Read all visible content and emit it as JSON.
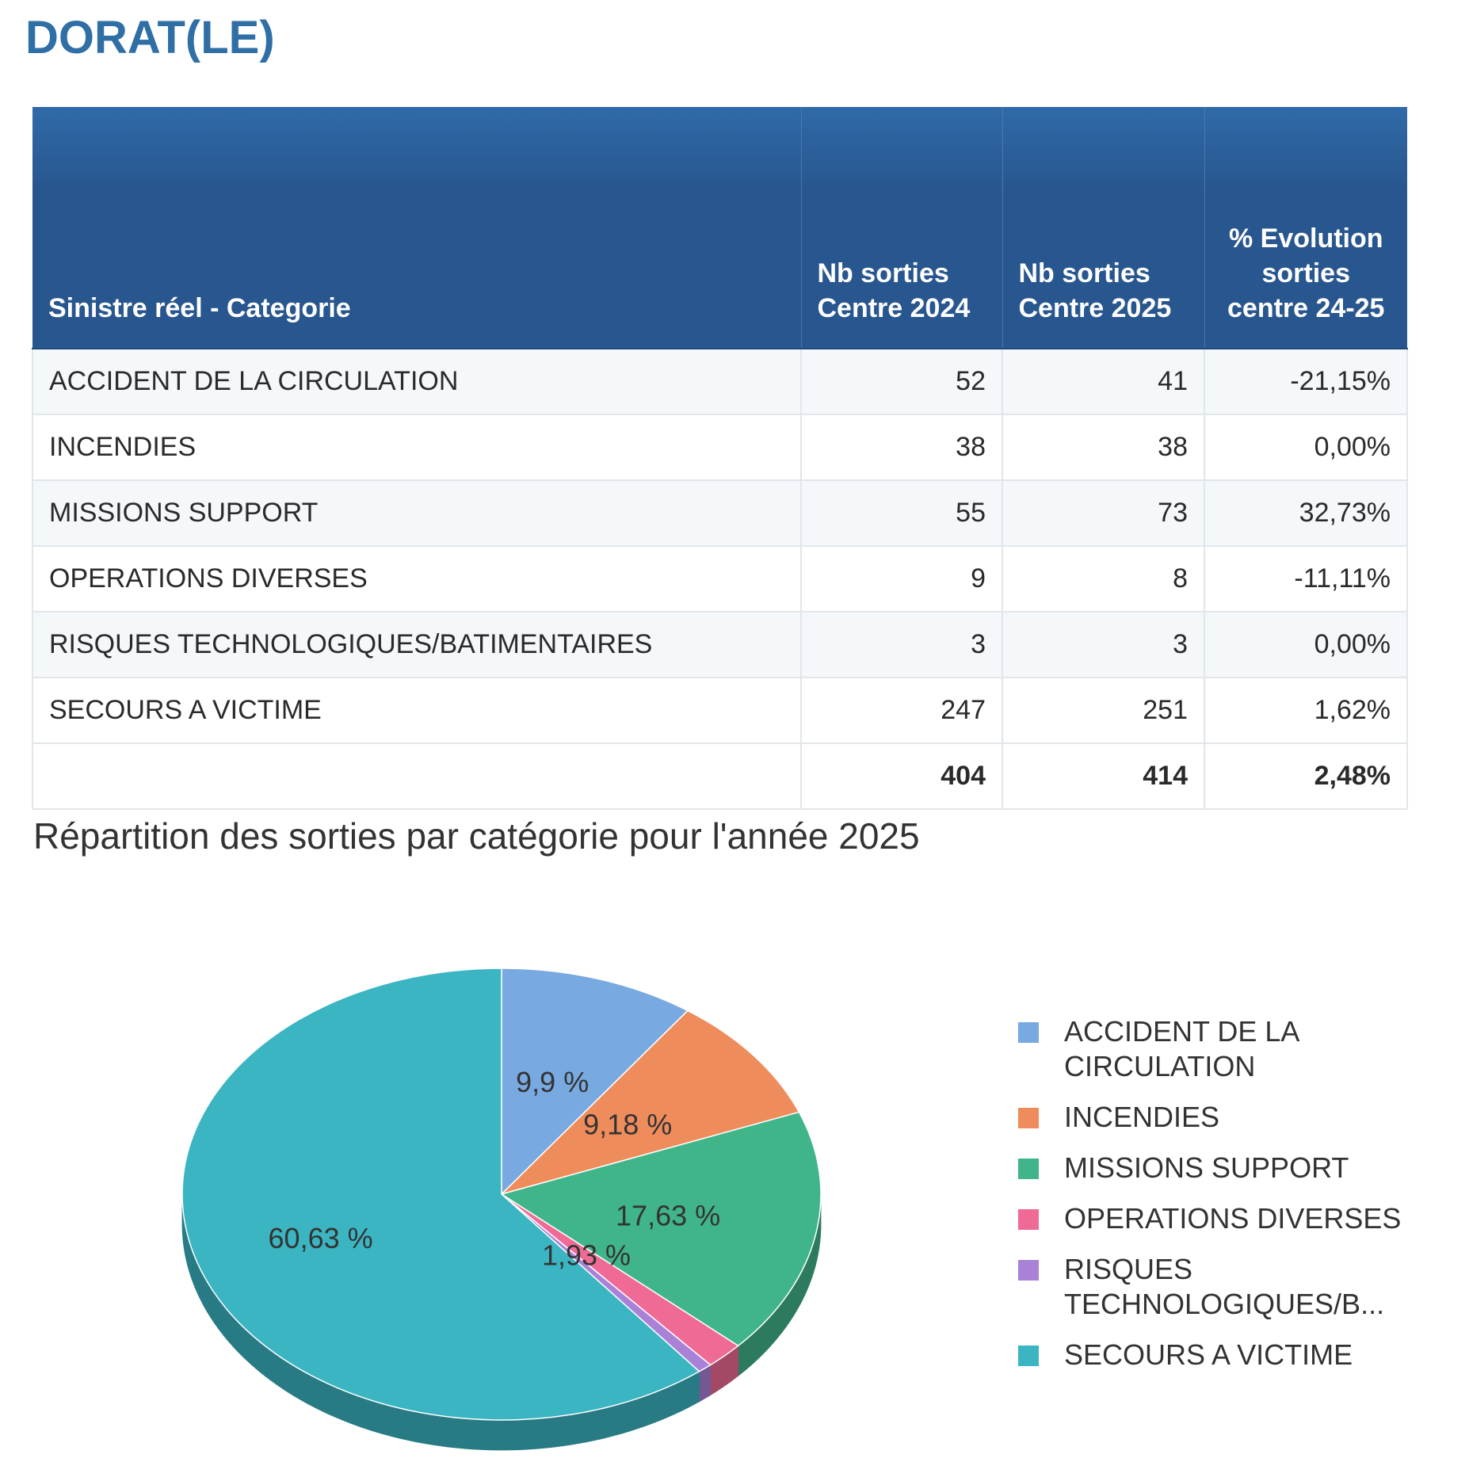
{
  "page": {
    "title": "DORAT(LE)"
  },
  "table": {
    "headers": [
      "Sinistre réel - Categorie",
      "Nb sorties Centre 2024",
      "Nb sorties Centre 2025",
      "% Evolution sorties centre 24-25"
    ],
    "rows": [
      [
        "ACCIDENT DE LA CIRCULATION",
        "52",
        "41",
        "-21,15%"
      ],
      [
        "INCENDIES",
        "38",
        "38",
        "0,00%"
      ],
      [
        "MISSIONS SUPPORT",
        "55",
        "73",
        "32,73%"
      ],
      [
        "OPERATIONS DIVERSES",
        "9",
        "8",
        "-11,11%"
      ],
      [
        "RISQUES TECHNOLOGIQUES/BATIMENTAIRES",
        "3",
        "3",
        "0,00%"
      ],
      [
        "SECOURS A VICTIME",
        "247",
        "251",
        "1,62%"
      ]
    ],
    "total": [
      "",
      "404",
      "414",
      "2,48%"
    ]
  },
  "chart_data": {
    "type": "pie",
    "title": "Répartition des sorties par catégorie pour l'année 2025",
    "categories": [
      "ACCIDENT DE LA CIRCULATION",
      "INCENDIES",
      "MISSIONS SUPPORT",
      "OPERATIONS DIVERSES",
      "RISQUES TECHNOLOGIQUES/BATIMENTAIRES",
      "SECOURS A VICTIME"
    ],
    "legend_labels": [
      "ACCIDENT DE LA CIRCULATION",
      "INCENDIES",
      "MISSIONS SUPPORT",
      "OPERATIONS DIVERSES",
      "RISQUES TECHNOLOGIQUES/B...",
      "SECOURS A VICTIME"
    ],
    "values": [
      41,
      38,
      73,
      8,
      3,
      251
    ],
    "percent_labels": [
      "9,9 %",
      "9,18 %",
      "17,63 %",
      "1,93 %",
      "",
      "60,63 %"
    ],
    "colors": [
      "#78a9e0",
      "#ef8c5c",
      "#41b58a",
      "#ef6b95",
      "#a982d8",
      "#3bb5c2"
    ],
    "legend_position": "right",
    "three_d": true
  }
}
